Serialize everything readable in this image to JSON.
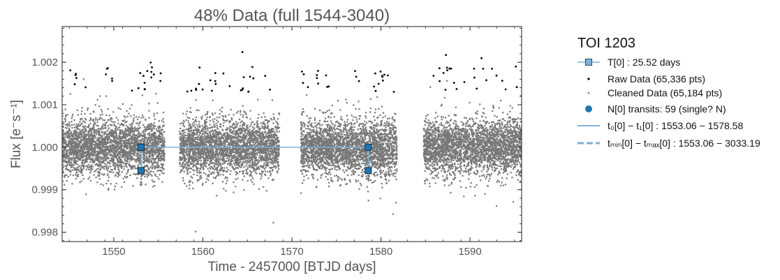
{
  "chart_data": {
    "type": "scatter",
    "title": "48% Data (full 1544-3040)",
    "xlabel": "Time - 2457000 [BTJD days]",
    "ylabel": "Flux [e⁻s⁻¹]",
    "xlim": [
      1544.2,
      1595.8
    ],
    "ylim": [
      0.99778,
      1.00284
    ],
    "x_ticks": [
      1550,
      1560,
      1570,
      1580,
      1590
    ],
    "y_ticks": [
      0.998,
      0.999,
      1.0,
      1.001,
      1.002
    ],
    "y_tick_labels": [
      "0.998",
      "0.999",
      "1.000",
      "1.001",
      "1.002"
    ],
    "grid": false,
    "legend_position": "outside-right",
    "data_segments": [
      [
        1544.2,
        1555.7
      ],
      [
        1557.4,
        1568.6
      ],
      [
        1571.0,
        1581.8
      ],
      [
        1584.8,
        1595.8
      ]
    ],
    "transits": [
      1553.06,
      1578.58
    ],
    "transit_bracket": {
      "top": 1.0,
      "bottom": 0.99945
    },
    "colors": {
      "raw": "#000000",
      "cleaned": "#777777",
      "transit": "#1f77b4",
      "line": "#7fb2d6"
    },
    "legend": {
      "title": "TOI 1203",
      "items": [
        {
          "name": "period",
          "label": "T[0] : 25.52 days"
        },
        {
          "name": "raw",
          "label": "Raw Data (65,336 pts)"
        },
        {
          "name": "cleaned",
          "label": "Cleaned Data (65,184 pts)"
        },
        {
          "name": "transits",
          "label": "N[0] transits: 59 (single? N)"
        },
        {
          "name": "t0t1",
          "label": "t₀[0] − t₁[0] : 1553.06 − 1578.58"
        },
        {
          "name": "tminmax",
          "label": "tₘᵢₙ[0] − tₘₐₓ[0] : 1553.06 − 3033.19"
        }
      ]
    }
  }
}
